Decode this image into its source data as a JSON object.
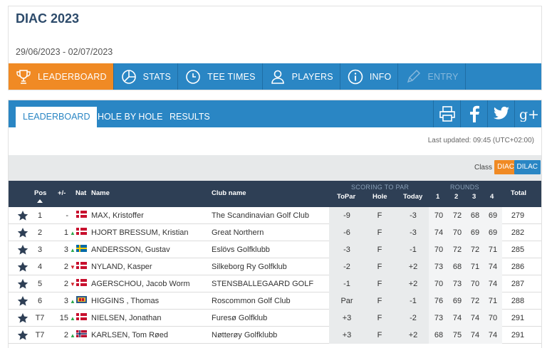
{
  "tournament": {
    "title": "DIAC 2023",
    "dates": "29/06/2023 - 02/07/2023"
  },
  "main_nav": [
    {
      "label": "LEADERBOARD",
      "icon": "trophy-icon",
      "active": true
    },
    {
      "label": "STATS",
      "icon": "pie-chart-icon"
    },
    {
      "label": "TEE TIMES",
      "icon": "clock-icon"
    },
    {
      "label": "PLAYERS",
      "icon": "user-icon"
    },
    {
      "label": "INFO",
      "icon": "info-icon"
    },
    {
      "label": "ENTRY",
      "icon": "pen-icon",
      "disabled": true
    }
  ],
  "sub_tabs": [
    {
      "label": "LEADERBOARD",
      "active": true
    },
    {
      "label": "HOLE BY HOLE"
    },
    {
      "label": "RESULTS"
    }
  ],
  "share_icons": [
    "printer-icon",
    "facebook-icon",
    "twitter-icon",
    "google-plus-icon"
  ],
  "last_updated": "Last updated: 09:45 (UTC+02:00)",
  "class_filter": {
    "label": "Class",
    "options": [
      {
        "label": "DIAC",
        "color": "#f08a24"
      },
      {
        "label": "DILAC",
        "color": "#2a86c4"
      }
    ]
  },
  "table": {
    "headers": {
      "pos": "Pos",
      "move": "+/-",
      "nat": "Nat",
      "name": "Name",
      "club": "Club name",
      "group_scoring": "SCORING TO PAR",
      "topar": "ToPar",
      "hole": "Hole",
      "today": "Today",
      "group_rounds": "ROUNDS",
      "r1": "1",
      "r2": "2",
      "r3": "3",
      "r4": "4",
      "total": "Total"
    },
    "rows": [
      {
        "pos": "1",
        "move": "-",
        "dir": "none",
        "nat": "denmark",
        "name": "MAX, Kristoffer",
        "club": "The Scandinavian Golf Club",
        "topar": "-9",
        "hole": "F",
        "today": "-3",
        "r1": "70",
        "r2": "72",
        "r3": "68",
        "r4": "69",
        "total": "279"
      },
      {
        "pos": "2",
        "move": "1",
        "dir": "up",
        "nat": "denmark",
        "name": "HJORT BRESSUM, Kristian",
        "club": "Great Northern",
        "topar": "-6",
        "hole": "F",
        "today": "-3",
        "r1": "74",
        "r2": "70",
        "r3": "69",
        "r4": "69",
        "total": "282"
      },
      {
        "pos": "3",
        "move": "3",
        "dir": "up",
        "nat": "sweden",
        "name": "ANDERSSON, Gustav",
        "club": "Eslövs Golfklubb",
        "topar": "-3",
        "hole": "F",
        "today": "-1",
        "r1": "70",
        "r2": "72",
        "r3": "72",
        "r4": "71",
        "total": "285"
      },
      {
        "pos": "4",
        "move": "2",
        "dir": "down",
        "nat": "denmark",
        "name": "NYLAND, Kasper",
        "club": "Silkeborg Ry Golfklub",
        "topar": "-2",
        "hole": "F",
        "today": "+2",
        "r1": "73",
        "r2": "68",
        "r3": "71",
        "r4": "74",
        "total": "286"
      },
      {
        "pos": "5",
        "move": "2",
        "dir": "down",
        "nat": "denmark",
        "name": "AGERSCHOU, Jacob Worm",
        "club": "STENSBALLEGAARD GOLF",
        "topar": "-1",
        "hole": "F",
        "today": "+2",
        "r1": "70",
        "r2": "73",
        "r3": "70",
        "r4": "74",
        "total": "287"
      },
      {
        "pos": "6",
        "move": "3",
        "dir": "up",
        "nat": "ireland",
        "name": "HIGGINS , Thomas",
        "club": "Roscommon Golf Club",
        "topar": "Par",
        "hole": "F",
        "today": "-1",
        "r1": "76",
        "r2": "69",
        "r3": "72",
        "r4": "71",
        "total": "288"
      },
      {
        "pos": "T7",
        "move": "15",
        "dir": "up",
        "nat": "denmark",
        "name": "NIELSEN, Jonathan",
        "club": "Furesø Golfklub",
        "topar": "+3",
        "hole": "F",
        "today": "-2",
        "r1": "73",
        "r2": "74",
        "r3": "74",
        "r4": "70",
        "total": "291"
      },
      {
        "pos": "T7",
        "move": "2",
        "dir": "up",
        "nat": "norway",
        "name": "KARLSEN, Tom Røed",
        "club": "Nøtterøy Golfklubb",
        "topar": "+3",
        "hole": "F",
        "today": "+2",
        "r1": "68",
        "r2": "75",
        "r3": "74",
        "r4": "74",
        "total": "291"
      }
    ]
  }
}
